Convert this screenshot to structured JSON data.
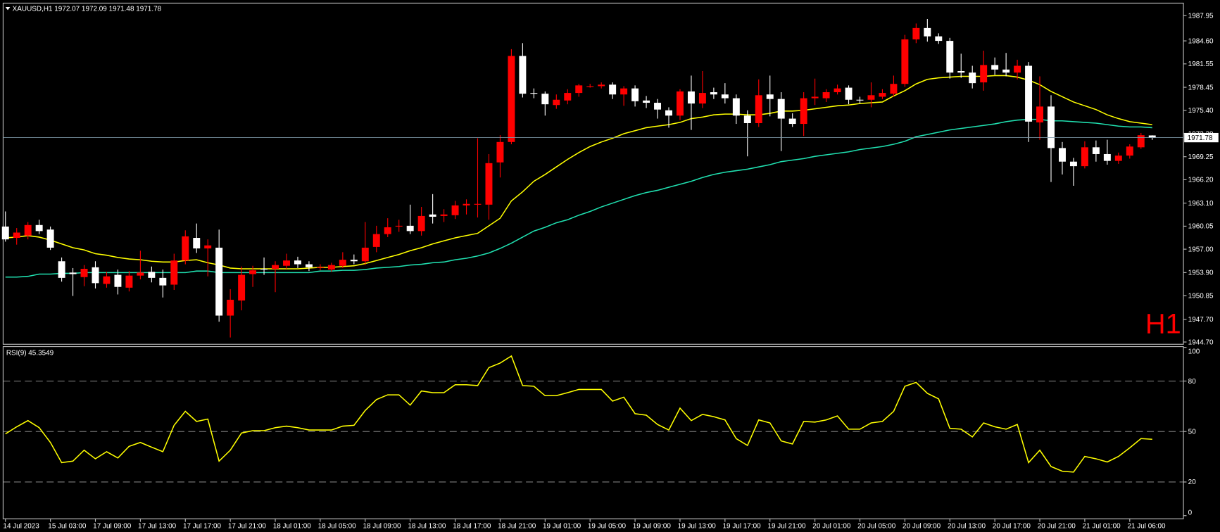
{
  "chart_data": [
    {
      "type": "candlestick",
      "title": "XAUUSD,H1  1972.07 1972.09 1971.48 1971.78",
      "annotation": "H1",
      "categories": [
        "14 Jul 2023",
        null,
        null,
        null,
        "15 Jul 03:00",
        null,
        null,
        null,
        "17 Jul 09:00",
        null,
        null,
        null,
        "17 Jul 13:00",
        null,
        null,
        null,
        "17 Jul 17:00",
        null,
        null,
        null,
        "17 Jul 21:00",
        null,
        null,
        null,
        "18 Jul 01:00",
        null,
        null,
        null,
        "18 Jul 05:00",
        null,
        null,
        null,
        "18 Jul 09:00",
        null,
        null,
        null,
        "18 Jul 13:00",
        null,
        null,
        null,
        "18 Jul 17:00",
        null,
        null,
        null,
        "18 Jul 21:00",
        null,
        null,
        null,
        "19 Jul 01:00",
        null,
        null,
        null,
        "19 Jul 05:00",
        null,
        null,
        null,
        "19 Jul 09:00",
        null,
        null,
        null,
        "19 Jul 13:00",
        null,
        null,
        null,
        "19 Jul 17:00",
        null,
        null,
        null,
        "19 Jul 21:00",
        null,
        null,
        null,
        "20 Jul 01:00",
        null,
        null,
        null,
        "20 Jul 05:00",
        null,
        null,
        null,
        "20 Jul 09:00",
        null,
        null,
        null,
        "20 Jul 13:00",
        null,
        null,
        null,
        "20 Jul 17:00",
        null,
        null,
        null,
        "20 Jul 21:00",
        null,
        null,
        null,
        "21 Jul 01:00",
        null,
        null,
        null,
        "21 Jul 06:00",
        null,
        null
      ],
      "open": [
        1960.0,
        1958.5,
        1958.8,
        1960.2,
        1959.6,
        1955.4,
        1953.9,
        1953.3,
        1954.6,
        1952.4,
        1953.6,
        1951.9,
        1953.5,
        1954.0,
        1953.2,
        1952.3,
        1955.5,
        1958.5,
        1957.1,
        1957.2,
        1948.2,
        1950.2,
        1953.7,
        1954.4,
        1954.4,
        1954.8,
        1955.5,
        1955.0,
        1954.6,
        1954.3,
        1954.8,
        1955.6,
        1955.4,
        1957.3,
        1959.0,
        1960.0,
        1960.1,
        1959.4,
        1961.6,
        1961.4,
        1961.5,
        1962.8,
        1962.9,
        1962.9,
        1968.5,
        1971.2,
        1982.6,
        1977.7,
        1977.6,
        1976.1,
        1976.7,
        1977.7,
        1978.6,
        1978.6,
        1978.8,
        1977.5,
        1978.3,
        1976.7,
        1976.4,
        1975.4,
        1974.7,
        1977.9,
        1976.3,
        1977.8,
        1977.5,
        1977.0,
        1974.7,
        1973.7,
        1977.5,
        1976.9,
        1974.3,
        1973.6,
        1977.0,
        1977.0,
        1977.8,
        1978.4,
        1976.8,
        1976.8,
        1977.2,
        1977.6,
        1978.9,
        1984.8,
        1986.3,
        1985.2,
        1984.6,
        1980.6,
        1980.4,
        1979.1,
        1981.4,
        1980.8,
        1980.4,
        1981.3,
        1973.8,
        1975.9,
        1970.4,
        1968.6,
        1968.0,
        1970.5,
        1969.6,
        1968.7,
        1969.4,
        1970.5,
        1972.07
      ],
      "high": [
        1962.0,
        1959.8,
        1960.6,
        1960.9,
        1960.0,
        1955.9,
        1954.5,
        1954.9,
        1955.4,
        1954.0,
        1954.3,
        1954.1,
        1956.8,
        1954.7,
        1954.3,
        1956.4,
        1959.5,
        1960.4,
        1958.3,
        1959.6,
        1951.7,
        1954.7,
        1954.8,
        1955.9,
        1955.4,
        1956.4,
        1956.0,
        1955.4,
        1955.0,
        1955.2,
        1956.6,
        1956.3,
        1960.6,
        1960.1,
        1961.1,
        1960.9,
        1962.9,
        1962.6,
        1964.3,
        1962.3,
        1963.4,
        1963.6,
        1971.7,
        1969.6,
        1972.1,
        1983.5,
        1984.3,
        1978.3,
        1977.9,
        1977.5,
        1978.2,
        1978.9,
        1978.9,
        1979.1,
        1979.1,
        1978.6,
        1978.7,
        1977.3,
        1976.9,
        1975.8,
        1978.2,
        1980.0,
        1980.6,
        1978.4,
        1979.0,
        1977.5,
        1975.4,
        1979.5,
        1980.0,
        1977.8,
        1975.0,
        1977.8,
        1979.6,
        1978.2,
        1978.8,
        1978.7,
        1977.2,
        1979.1,
        1978.2,
        1980.0,
        1985.4,
        1986.9,
        1987.5,
        1985.6,
        1985.0,
        1982.9,
        1981.3,
        1983.3,
        1982.4,
        1983.0,
        1982.1,
        1981.8,
        1979.9,
        1977.4,
        1971.2,
        1969.1,
        1971.3,
        1971.4,
        1971.5,
        1969.8,
        1970.9,
        1972.4,
        1972.09
      ],
      "low": [
        1958.0,
        1957.6,
        1958.3,
        1959.0,
        1956.9,
        1952.7,
        1950.8,
        1952.1,
        1951.8,
        1951.9,
        1951.0,
        1951.4,
        1953.0,
        1952.6,
        1950.6,
        1951.6,
        1955.0,
        1956.5,
        1953.4,
        1947.4,
        1945.3,
        1948.9,
        1952.0,
        1953.6,
        1951.3,
        1954.4,
        1954.5,
        1954.1,
        1954.2,
        1954.0,
        1954.5,
        1955.0,
        1954.9,
        1956.6,
        1958.6,
        1959.3,
        1959.0,
        1958.8,
        1960.4,
        1960.6,
        1961.0,
        1961.6,
        1961.2,
        1960.9,
        1966.5,
        1970.9,
        1977.1,
        1977.0,
        1974.7,
        1975.6,
        1976.2,
        1977.2,
        1978.4,
        1978.3,
        1976.9,
        1976.0,
        1975.9,
        1975.7,
        1974.3,
        1973.1,
        1974.1,
        1972.8,
        1975.7,
        1976.9,
        1976.3,
        1973.6,
        1969.3,
        1973.2,
        1974.6,
        1970.0,
        1973.2,
        1972.0,
        1976.1,
        1976.5,
        1977.5,
        1976.2,
        1976.3,
        1975.8,
        1976.9,
        1977.2,
        1978.5,
        1984.3,
        1984.5,
        1984.2,
        1979.6,
        1979.7,
        1978.3,
        1978.0,
        1980.1,
        1979.9,
        1979.5,
        1971.2,
        1971.5,
        1965.9,
        1966.9,
        1965.4,
        1967.7,
        1968.6,
        1968.2,
        1968.3,
        1969.0,
        1970.3,
        1971.48
      ],
      "close": [
        1958.3,
        1959.2,
        1960.2,
        1959.4,
        1957.2,
        1953.2,
        1953.7,
        1954.4,
        1952.5,
        1953.4,
        1952.0,
        1953.5,
        1953.9,
        1953.2,
        1952.2,
        1955.5,
        1958.7,
        1957.1,
        1957.5,
        1948.2,
        1950.3,
        1953.6,
        1954.2,
        1954.3,
        1954.9,
        1955.5,
        1955.0,
        1954.6,
        1954.6,
        1954.9,
        1955.6,
        1955.4,
        1957.2,
        1959.0,
        1959.9,
        1960.1,
        1959.4,
        1961.4,
        1961.3,
        1961.6,
        1962.8,
        1963.0,
        1963.0,
        1968.4,
        1971.2,
        1982.6,
        1977.6,
        1977.6,
        1976.2,
        1976.8,
        1977.7,
        1978.7,
        1978.6,
        1978.8,
        1977.5,
        1978.3,
        1976.6,
        1976.4,
        1975.5,
        1974.7,
        1977.9,
        1976.3,
        1977.7,
        1977.5,
        1977.0,
        1974.7,
        1973.7,
        1977.4,
        1976.9,
        1974.3,
        1973.6,
        1977.0,
        1977.2,
        1977.8,
        1978.3,
        1976.8,
        1976.7,
        1977.4,
        1977.7,
        1978.9,
        1984.8,
        1986.3,
        1985.2,
        1984.6,
        1980.4,
        1980.4,
        1979.0,
        1981.4,
        1980.8,
        1980.4,
        1981.3,
        1973.9,
        1975.9,
        1970.4,
        1968.6,
        1968.0,
        1970.5,
        1969.6,
        1968.7,
        1969.4,
        1970.6,
        1972.1,
        1971.78
      ],
      "up_color": "#ff0000",
      "down_color": "#ffffff",
      "overlays": [
        {
          "color": "#ffff00",
          "values": [
            1958.5,
            1958.6,
            1958.8,
            1958.6,
            1958.2,
            1957.7,
            1957.2,
            1956.9,
            1956.4,
            1956.2,
            1955.9,
            1955.7,
            1955.6,
            1955.4,
            1955.3,
            1955.3,
            1955.5,
            1955.6,
            1955.2,
            1954.9,
            1954.5,
            1954.4,
            1954.4,
            1954.4,
            1954.4,
            1954.4,
            1954.4,
            1954.5,
            1954.6,
            1954.6,
            1954.7,
            1954.8,
            1955.1,
            1955.5,
            1955.9,
            1956.3,
            1956.8,
            1957.2,
            1957.7,
            1958.1,
            1958.5,
            1958.8,
            1959.1,
            1960.1,
            1961.1,
            1963.4,
            1964.6,
            1966.0,
            1966.9,
            1967.9,
            1968.9,
            1969.8,
            1970.6,
            1971.2,
            1971.7,
            1972.3,
            1972.7,
            1973.1,
            1973.3,
            1973.5,
            1973.8,
            1974.3,
            1974.5,
            1974.8,
            1974.9,
            1974.9,
            1974.8,
            1974.8,
            1975.0,
            1975.3,
            1975.3,
            1975.4,
            1975.6,
            1975.8,
            1976.0,
            1976.1,
            1976.3,
            1976.4,
            1976.5,
            1977.3,
            1978.0,
            1978.9,
            1979.5,
            1979.7,
            1979.8,
            1979.9,
            1979.9,
            1979.9,
            1980.0,
            1980.0,
            1979.8,
            1979.4,
            1978.8,
            1977.9,
            1977.2,
            1976.5,
            1976.0,
            1975.5,
            1974.8,
            1974.3,
            1973.9,
            1973.7,
            1973.5
          ]
        },
        {
          "color": "#20e0b0",
          "values": [
            1953.3,
            1953.3,
            1953.4,
            1953.7,
            1953.7,
            1953.8,
            1953.8,
            1953.9,
            1953.9,
            1953.9,
            1953.9,
            1953.9,
            1953.9,
            1953.9,
            1953.9,
            1953.9,
            1953.9,
            1954.1,
            1954.1,
            1953.9,
            1953.9,
            1953.9,
            1953.9,
            1953.9,
            1953.9,
            1953.9,
            1953.9,
            1953.9,
            1954.1,
            1954.1,
            1954.2,
            1954.2,
            1954.3,
            1954.5,
            1954.6,
            1954.7,
            1954.9,
            1955.0,
            1955.2,
            1955.3,
            1955.6,
            1955.8,
            1956.1,
            1956.5,
            1957.1,
            1957.8,
            1958.6,
            1959.4,
            1959.9,
            1960.5,
            1960.9,
            1961.5,
            1962.0,
            1962.6,
            1963.1,
            1963.6,
            1964.1,
            1964.5,
            1964.8,
            1965.2,
            1965.6,
            1966.0,
            1966.5,
            1966.9,
            1967.2,
            1967.4,
            1967.6,
            1967.9,
            1968.2,
            1968.6,
            1968.8,
            1969.0,
            1969.3,
            1969.5,
            1969.7,
            1969.9,
            1970.2,
            1970.4,
            1970.6,
            1970.9,
            1971.3,
            1971.9,
            1972.2,
            1972.5,
            1972.8,
            1973.0,
            1973.2,
            1973.4,
            1973.6,
            1973.9,
            1974.1,
            1974.2,
            1974.2,
            1974.0,
            1974.0,
            1973.9,
            1973.8,
            1973.7,
            1973.5,
            1973.3,
            1973.2,
            1973.2,
            1973.1
          ]
        }
      ],
      "last_price": 1971.78,
      "ylim": [
        1944.4,
        1989.5
      ],
      "yticks": [
        1987.95,
        {
          "value": 1984.6,
          "label": "1984.60"
        },
        1981.55,
        1978.45,
        {
          "value": 1975.4,
          "label": "1975.40"
        },
        {
          "value": 1972.3,
          "label": "1972.30"
        },
        1969.25,
        {
          "value": 1966.2,
          "label": "1966.20"
        },
        {
          "value": 1963.1,
          "label": "1963.10"
        },
        1960.05,
        {
          "value": 1957,
          "label": "1957.00"
        },
        {
          "value": 1953.9,
          "label": "1953.90"
        },
        1950.85,
        {
          "value": 1947.7,
          "label": "1947.70"
        },
        {
          "value": 1944.7,
          "label": "1944.70"
        }
      ]
    },
    {
      "type": "line",
      "title": "RSI(9) 45.3549",
      "color": "#ffff00",
      "values": [
        48.6,
        52.8,
        56.5,
        52.3,
        43.5,
        31.5,
        32.4,
        38.9,
        33.8,
        38.0,
        34.3,
        41.2,
        43.5,
        40.7,
        38.0,
        53.7,
        62.0,
        56.0,
        57.4,
        32.4,
        38.9,
        49.1,
        50.5,
        50.5,
        52.3,
        53.2,
        52.3,
        50.9,
        50.9,
        50.9,
        53.2,
        53.7,
        62.5,
        69.0,
        71.8,
        71.8,
        65.7,
        74.1,
        73.1,
        73.1,
        77.8,
        77.8,
        77.3,
        88.0,
        90.7,
        94.9,
        77.3,
        76.9,
        71.3,
        71.3,
        73.1,
        75.0,
        75.0,
        75.0,
        68.1,
        70.4,
        60.6,
        59.7,
        54.2,
        50.9,
        63.9,
        56.5,
        60.2,
        58.8,
        56.9,
        45.8,
        41.7,
        56.9,
        55.1,
        44.4,
        42.6,
        56.0,
        55.6,
        56.9,
        59.3,
        51.4,
        51.4,
        55.1,
        56.0,
        62.0,
        76.9,
        79.2,
        72.7,
        69.4,
        51.9,
        51.4,
        46.8,
        55.1,
        52.8,
        51.4,
        54.2,
        31.5,
        38.9,
        29.2,
        26.4,
        25.9,
        35.2,
        33.8,
        31.9,
        35.2,
        40.3,
        45.8,
        45.4
      ],
      "ylim": [
        0,
        100
      ],
      "yticks": [
        0,
        20,
        50,
        80,
        100
      ]
    }
  ]
}
